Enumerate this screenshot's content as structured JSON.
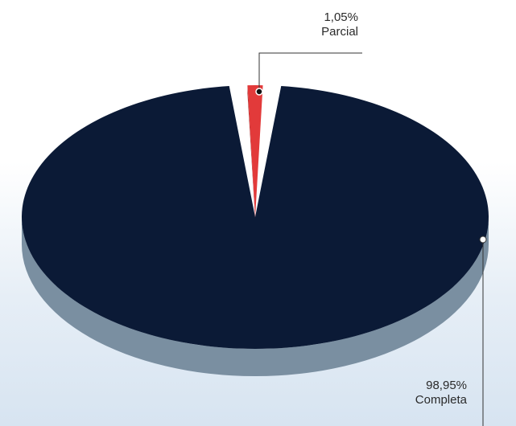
{
  "chart_data": {
    "type": "pie",
    "style": "3d-exploded",
    "slices": [
      {
        "label": "Parcial",
        "value": 1.05,
        "value_text": "1,05%",
        "color": "#e23a3a",
        "side_color": "#9e2525",
        "exploded": true
      },
      {
        "label": "Completa",
        "value": 98.95,
        "value_text": "98,95%",
        "color": "#0b1a36",
        "side_color": "#7a8fa1",
        "exploded": false
      }
    ]
  }
}
